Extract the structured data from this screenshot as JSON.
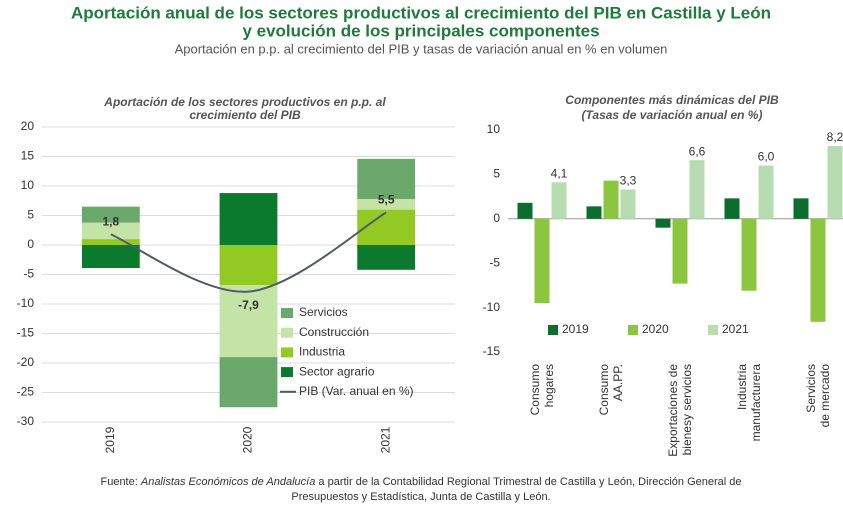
{
  "title": [
    "Aportación anual de los sectores productivos al crecimiento del PIB en Castilla y León",
    "y evolución de los principales componentes"
  ],
  "subtitle": "Aportación en p.p. al crecimiento del PIB y tasas de variación anual en % en volumen",
  "source": [
    "Fuente:",
    "Analistas Económicos de Andalucía",
    "a partir de la Contabilidad Regional Trimestral de Castilla y León, Dirección General de",
    "Presupuestos y Estadística, Junta de Castilla y León."
  ],
  "chart_data": [
    {
      "type": "stacked_bar",
      "title": [
        "Aportación de los sectores productivos en p.p. al",
        "crecimiento del PIB"
      ],
      "categories": [
        "2019",
        "2020",
        "2021"
      ],
      "ylim": [
        -30,
        20
      ],
      "yticks": [
        -30,
        -25,
        -20,
        -15,
        -10,
        -5,
        0,
        5,
        10,
        15,
        20
      ],
      "grid": true,
      "legend": "lower right",
      "series": [
        {
          "name": "Servicios",
          "color": "#6aa96b",
          "values": [
            2.7,
            -8.5,
            6.8
          ]
        },
        {
          "name": "Construcción",
          "color": "#c3e4a6",
          "values": [
            2.8,
            -12.2,
            1.8
          ]
        },
        {
          "name": "Industria",
          "color": "#93c923",
          "values": [
            1.0,
            -6.8,
            6.0
          ]
        },
        {
          "name": "Sector agrario",
          "color": "#0b7a2c",
          "values": [
            -3.9,
            8.8,
            -4.2
          ]
        },
        {
          "name": "PIB (Var. anual en %)",
          "type": "line",
          "color": "#4d5b69",
          "values": [
            1.8,
            -7.9,
            5.5
          ],
          "value_labels": [
            "1,8",
            "-7,9",
            "5,5"
          ]
        }
      ]
    },
    {
      "type": "bar",
      "title": "Componentes más dinámicas del PIB",
      "subtitle": "(Tasas de variación anual en %)",
      "categories": [
        [
          "Consumo",
          "hogares"
        ],
        [
          "Consumo",
          "AA.PP."
        ],
        [
          "Exportaciones de",
          "bienesy servicios"
        ],
        [
          "Industria",
          "manufacturera"
        ],
        [
          "Servicios",
          "de mercado"
        ]
      ],
      "ylim": [
        -15,
        10
      ],
      "yticks": [
        -15,
        -10,
        -5,
        0,
        5,
        10
      ],
      "grid": false,
      "legend": "lower center",
      "series": [
        {
          "name": "2019",
          "color": "#0b6e2c",
          "values": [
            1.8,
            1.4,
            -1.0,
            2.3,
            2.3
          ]
        },
        {
          "name": "2020",
          "color": "#8cc63f",
          "values": [
            -9.5,
            4.3,
            -7.3,
            -8.1,
            -11.6
          ]
        },
        {
          "name": "2021",
          "color": "#b7dcb0",
          "values": [
            4.1,
            3.3,
            6.6,
            6.0,
            8.2
          ],
          "value_labels": [
            "4,1",
            "3,3",
            "6,6",
            "6,0",
            "8,2"
          ]
        }
      ]
    }
  ]
}
